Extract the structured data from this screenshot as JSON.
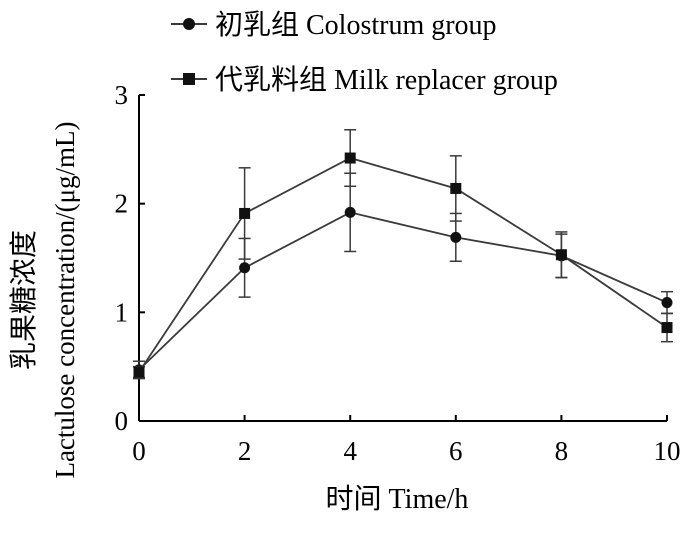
{
  "chart_data": {
    "type": "line",
    "title": "",
    "xlabel": "时间  Time/h",
    "ylabel_cn": "乳果糖浓度",
    "ylabel_en": "Lactulose concentration/(μg/mL)",
    "xlim": [
      0,
      10
    ],
    "ylim": [
      0,
      3
    ],
    "x_ticks": [
      "0",
      "2",
      "4",
      "6",
      "8",
      "10"
    ],
    "y_ticks": [
      "0",
      "1",
      "2",
      "3"
    ],
    "grid": false,
    "legend_position": "top-left",
    "x": [
      0,
      2,
      4,
      6,
      8,
      10
    ],
    "series": [
      {
        "name": "初乳组 Colostrum group",
        "marker": "circle",
        "values": [
          0.47,
          1.41,
          1.92,
          1.69,
          1.52,
          1.09
        ],
        "error": [
          0.08,
          0.27,
          0.36,
          0.22,
          0.2,
          0.1
        ]
      },
      {
        "name": "代乳料组 Milk replacer group",
        "marker": "square",
        "values": [
          0.45,
          1.91,
          2.42,
          2.14,
          1.53,
          0.86
        ],
        "error": [
          0.05,
          0.42,
          0.26,
          0.3,
          0.21,
          0.13
        ]
      }
    ],
    "colors": {
      "line": "#3a3a3a",
      "marker": "#111111",
      "axis": "#000000"
    }
  }
}
